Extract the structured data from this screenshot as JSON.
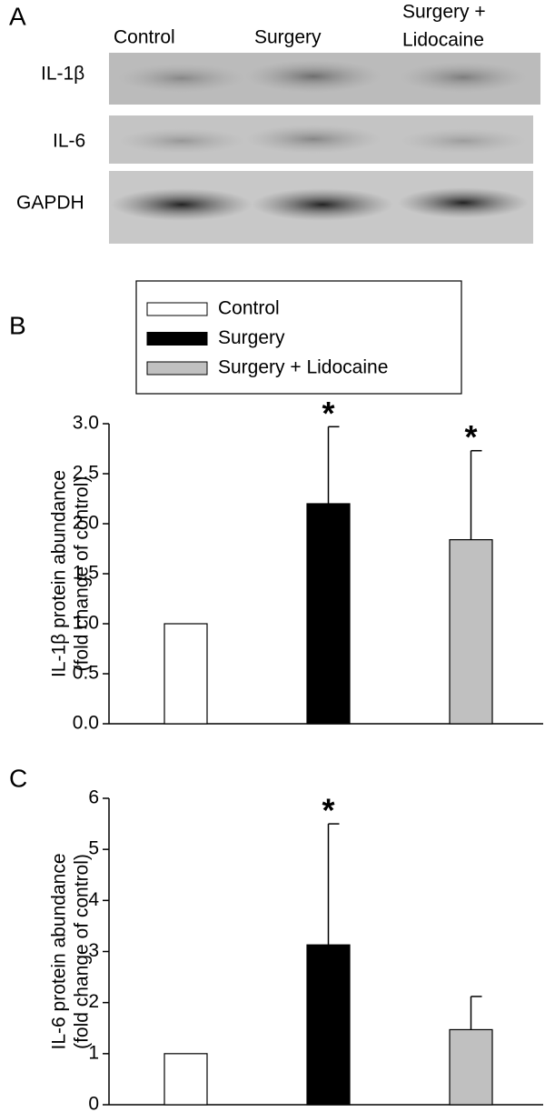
{
  "blot": {
    "panel_label": "A",
    "lanes": [
      [
        "Control"
      ],
      [
        "Surgery"
      ],
      [
        "Surgery +",
        "Lidocaine"
      ]
    ],
    "rows": [
      "IL-1β",
      "IL-6",
      "GAPDH"
    ]
  },
  "legend": {
    "position": "top"
  },
  "chart_data": [
    {
      "type": "bar",
      "panel_label": "B",
      "ylabel": [
        "IL-1β protein abundance",
        "(fold change of control)"
      ],
      "categories": [
        "Control",
        "Surgery",
        "Surgery + Lidocaine"
      ],
      "colors": [
        "#ffffff",
        "#000000",
        "#c0c0c0"
      ],
      "values": [
        1.0,
        2.2,
        1.84
      ],
      "errors": [
        0,
        0.77,
        0.89
      ],
      "significance": [
        null,
        "*",
        "*"
      ],
      "ylim": [
        0,
        3
      ],
      "yticks": [
        {
          "value": 0,
          "label": "0.0"
        },
        0.5,
        {
          "value": 1,
          "label": "1.0"
        },
        1.5,
        {
          "value": 2,
          "label": "2.0"
        },
        2.5,
        {
          "value": 3,
          "label": "3.0"
        }
      ]
    },
    {
      "type": "bar",
      "panel_label": "C",
      "ylabel": [
        "IL-6 protein abundance",
        "(fold change of control)"
      ],
      "colors": [
        "#ffffff",
        "#000000",
        "#c0c0c0"
      ],
      "values": [
        1.0,
        3.13,
        1.47
      ],
      "errors": [
        0,
        2.37,
        0.65
      ],
      "significance": [
        null,
        "*",
        null
      ],
      "ylim": [
        0,
        6
      ],
      "yticks": [
        0,
        1,
        2,
        3,
        4,
        5,
        6
      ]
    }
  ]
}
